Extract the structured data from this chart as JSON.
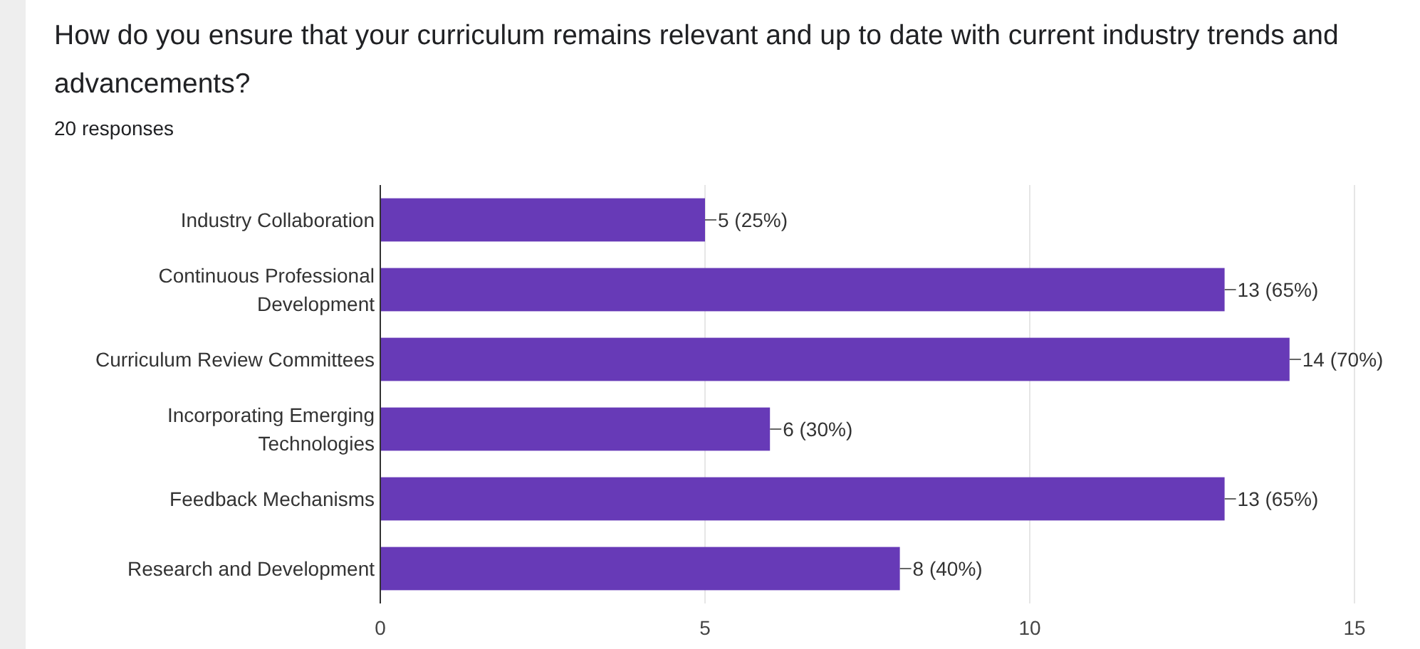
{
  "chart_data": {
    "type": "bar",
    "orientation": "horizontal",
    "title": "How do you ensure that your curriculum remains relevant and up to date with current industry trends and advancements?",
    "subtitle": "20 responses",
    "categories": [
      "Industry Collaboration",
      "Continuous Professional Development",
      "Curriculum Review Committees",
      "Incorporating Emerging Technologies",
      "Feedback Mechanisms",
      "Research and Development"
    ],
    "values": [
      5,
      13,
      14,
      6,
      13,
      8
    ],
    "value_labels": [
      "5 (25%)",
      "13 (65%)",
      "14 (70%)",
      "6 (30%)",
      "13 (65%)",
      "8 (40%)"
    ],
    "color": "#673ab7",
    "xlim": [
      0,
      15
    ],
    "xticks": [
      0,
      5,
      10,
      15
    ],
    "grid": "x"
  }
}
